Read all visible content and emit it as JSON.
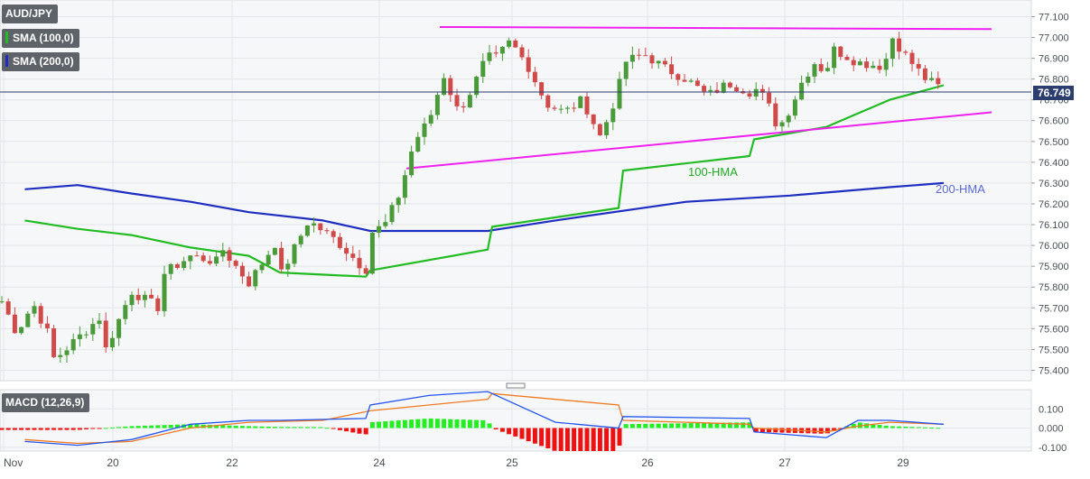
{
  "colors": {
    "up": "#4a9a3a",
    "down": "#d04a4a",
    "hma100": "#22bb22",
    "hma200": "#1e2ec0",
    "trend": "#ee22ee",
    "price_line": "#2c3e6e",
    "macd": "#2255ee",
    "signal": "#f07a20",
    "hist_up": "#22ee22",
    "hist_down": "#ee1111"
  },
  "legend": {
    "symbol": "AUD/JPY",
    "sma1": "SMA (100,0)",
    "sma2": "SMA (200,0)",
    "macd": "MACD (12,26,9)"
  },
  "chart_data": [
    {
      "type": "candlestick",
      "title": "AUD/JPY",
      "x_tick_labels": [
        "Nov",
        "20",
        "22",
        "24",
        "25",
        "26",
        "27",
        "29"
      ],
      "y_tick_labels": [
        "77.100",
        "77.000",
        "76.900",
        "76.800",
        "76.700",
        "76.600",
        "76.500",
        "76.400",
        "76.300",
        "76.200",
        "76.100",
        "76.000",
        "75.900",
        "75.800",
        "75.700",
        "75.600",
        "75.500",
        "75.400"
      ],
      "ylim": [
        75.35,
        77.18
      ],
      "current_price": "76.749",
      "annotations": [
        "100-HMA",
        "200-HMA"
      ],
      "anchors": [
        [
          "Nov",
          75.75
        ],
        [
          "Nov",
          75.58
        ],
        [
          "Nov",
          75.72
        ],
        [
          "Nov",
          75.56
        ],
        [
          "19",
          75.45
        ],
        [
          "19",
          75.66
        ],
        [
          "20",
          75.48
        ],
        [
          "20",
          75.78
        ],
        [
          "20",
          75.7
        ],
        [
          "21",
          75.86
        ],
        [
          "21",
          75.95
        ],
        [
          "21",
          75.92
        ],
        [
          "22",
          75.99
        ],
        [
          "22",
          75.82
        ],
        [
          "22",
          76.02
        ],
        [
          "23",
          75.85
        ],
        [
          "23",
          76.12
        ],
        [
          "23",
          76.02
        ],
        [
          "23",
          75.88
        ],
        [
          "24",
          76.06
        ],
        [
          "24",
          76.1
        ],
        [
          "24",
          76.25
        ],
        [
          "24",
          76.5
        ],
        [
          "24",
          76.6
        ],
        [
          "24",
          76.82
        ],
        [
          "24",
          76.64
        ],
        [
          "24",
          76.76
        ],
        [
          "24",
          76.92
        ],
        [
          "25",
          76.88
        ],
        [
          "25",
          76.98
        ],
        [
          "25",
          76.86
        ],
        [
          "25",
          76.68
        ],
        [
          "25",
          76.64
        ],
        [
          "25",
          76.7
        ],
        [
          "25",
          76.52
        ],
        [
          "25",
          76.75
        ],
        [
          "26",
          76.88
        ],
        [
          "26",
          76.92
        ],
        [
          "26",
          76.85
        ],
        [
          "26",
          76.8
        ],
        [
          "26",
          76.72
        ],
        [
          "26",
          76.78
        ],
        [
          "26",
          76.74
        ],
        [
          "27",
          76.76
        ],
        [
          "27",
          76.7
        ],
        [
          "27",
          76.56
        ],
        [
          "27",
          76.66
        ],
        [
          "27",
          76.79
        ],
        [
          "27",
          76.88
        ],
        [
          "27",
          76.83
        ],
        [
          "28",
          76.95
        ],
        [
          "28",
          76.88
        ],
        [
          "28",
          76.86
        ],
        [
          "29",
          77.02
        ],
        [
          "29",
          76.9
        ],
        [
          "29",
          76.8
        ],
        [
          "29",
          76.749
        ]
      ],
      "hma100": [
        [
          "Nov",
          76.12
        ],
        [
          "19",
          76.08
        ],
        [
          "20",
          76.05
        ],
        [
          "21",
          75.99
        ],
        [
          "22",
          75.95
        ],
        [
          "23",
          75.87
        ],
        [
          "23",
          75.85
        ],
        [
          "24",
          75.88
        ],
        [
          "24",
          75.98
        ],
        [
          "25",
          76.09
        ],
        [
          "25",
          76.18
        ],
        [
          "26",
          76.36
        ],
        [
          "26",
          76.43
        ],
        [
          "27",
          76.51
        ],
        [
          "27",
          76.57
        ],
        [
          "29",
          76.7
        ],
        [
          "29",
          76.77
        ]
      ],
      "hma200": [
        [
          "Nov",
          76.27
        ],
        [
          "19",
          76.29
        ],
        [
          "20",
          76.25
        ],
        [
          "21",
          76.21
        ],
        [
          "22",
          76.16
        ],
        [
          "23",
          76.12
        ],
        [
          "24",
          76.07
        ],
        [
          "24",
          76.07
        ],
        [
          "25",
          76.12
        ],
        [
          "26",
          76.21
        ],
        [
          "27",
          76.24
        ],
        [
          "29",
          76.28
        ],
        [
          "29",
          76.3
        ]
      ],
      "trendlines": [
        {
          "from": [
            "24",
            77.05
          ],
          "to": [
            "29",
            77.04
          ]
        },
        {
          "from": [
            "24",
            76.37
          ],
          "to": [
            "29",
            76.64
          ]
        }
      ]
    },
    {
      "type": "macd",
      "title": "MACD (12,26,9)",
      "y_tick_labels": [
        "0.100",
        "0.000",
        "-0.100"
      ],
      "ylim": [
        -0.12,
        0.2
      ],
      "macd": [
        [
          "Nov",
          -0.07
        ],
        [
          "19",
          -0.09
        ],
        [
          "20",
          -0.06
        ],
        [
          "21",
          0.02
        ],
        [
          "22",
          0.04
        ],
        [
          "23",
          0.04
        ],
        [
          "23",
          0.05
        ],
        [
          "24",
          0.12
        ],
        [
          "24",
          0.17
        ],
        [
          "24",
          0.19
        ],
        [
          "25",
          0.18
        ],
        [
          "25",
          0.03
        ],
        [
          "25",
          0.0
        ],
        [
          "26",
          0.06
        ],
        [
          "26",
          0.05
        ],
        [
          "27",
          -0.02
        ],
        [
          "27",
          -0.05
        ],
        [
          "28",
          0.04
        ],
        [
          "29",
          0.04
        ],
        [
          "29",
          0.02
        ]
      ],
      "signal": [
        [
          "Nov",
          -0.06
        ],
        [
          "19",
          -0.08
        ],
        [
          "20",
          -0.07
        ],
        [
          "21",
          -0.0
        ],
        [
          "22",
          0.03
        ],
        [
          "23",
          0.04
        ],
        [
          "24",
          0.09
        ],
        [
          "24",
          0.15
        ],
        [
          "25",
          0.18
        ],
        [
          "25",
          0.12
        ],
        [
          "26",
          0.04
        ],
        [
          "26",
          0.02
        ],
        [
          "27",
          0.0
        ],
        [
          "27",
          -0.02
        ],
        [
          "28",
          0.01
        ],
        [
          "29",
          0.03
        ],
        [
          "29",
          0.02
        ]
      ]
    }
  ]
}
